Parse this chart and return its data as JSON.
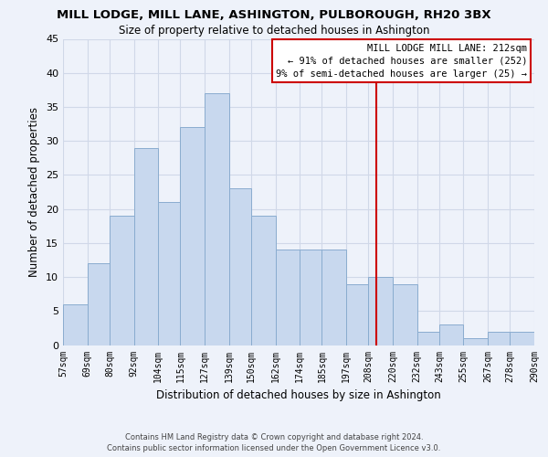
{
  "title": "MILL LODGE, MILL LANE, ASHINGTON, PULBOROUGH, RH20 3BX",
  "subtitle": "Size of property relative to detached houses in Ashington",
  "xlabel": "Distribution of detached houses by size in Ashington",
  "ylabel": "Number of detached properties",
  "bar_color": "#c8d8ee",
  "bar_edge_color": "#8aaccf",
  "bin_labels": [
    "57sqm",
    "69sqm",
    "80sqm",
    "92sqm",
    "104sqm",
    "115sqm",
    "127sqm",
    "139sqm",
    "150sqm",
    "162sqm",
    "174sqm",
    "185sqm",
    "197sqm",
    "208sqm",
    "220sqm",
    "232sqm",
    "243sqm",
    "255sqm",
    "267sqm",
    "278sqm",
    "290sqm"
  ],
  "bin_edges": [
    57,
    69,
    80,
    92,
    104,
    115,
    127,
    139,
    150,
    162,
    174,
    185,
    197,
    208,
    220,
    232,
    243,
    255,
    267,
    278,
    290
  ],
  "counts": [
    6,
    12,
    19,
    29,
    21,
    32,
    37,
    23,
    19,
    14,
    14,
    14,
    9,
    10,
    9,
    2,
    3,
    1,
    2,
    2
  ],
  "reference_line_x": 212,
  "reference_line_color": "#cc0000",
  "annotation_title": "MILL LODGE MILL LANE: 212sqm",
  "annotation_line1": "← 91% of detached houses are smaller (252)",
  "annotation_line2": "9% of semi-detached houses are larger (25) →",
  "ylim": [
    0,
    45
  ],
  "yticks": [
    0,
    5,
    10,
    15,
    20,
    25,
    30,
    35,
    40,
    45
  ],
  "background_color": "#eef2fa",
  "grid_color": "#d0d8e8",
  "footer_line1": "Contains HM Land Registry data © Crown copyright and database right 2024.",
  "footer_line2": "Contains public sector information licensed under the Open Government Licence v3.0."
}
